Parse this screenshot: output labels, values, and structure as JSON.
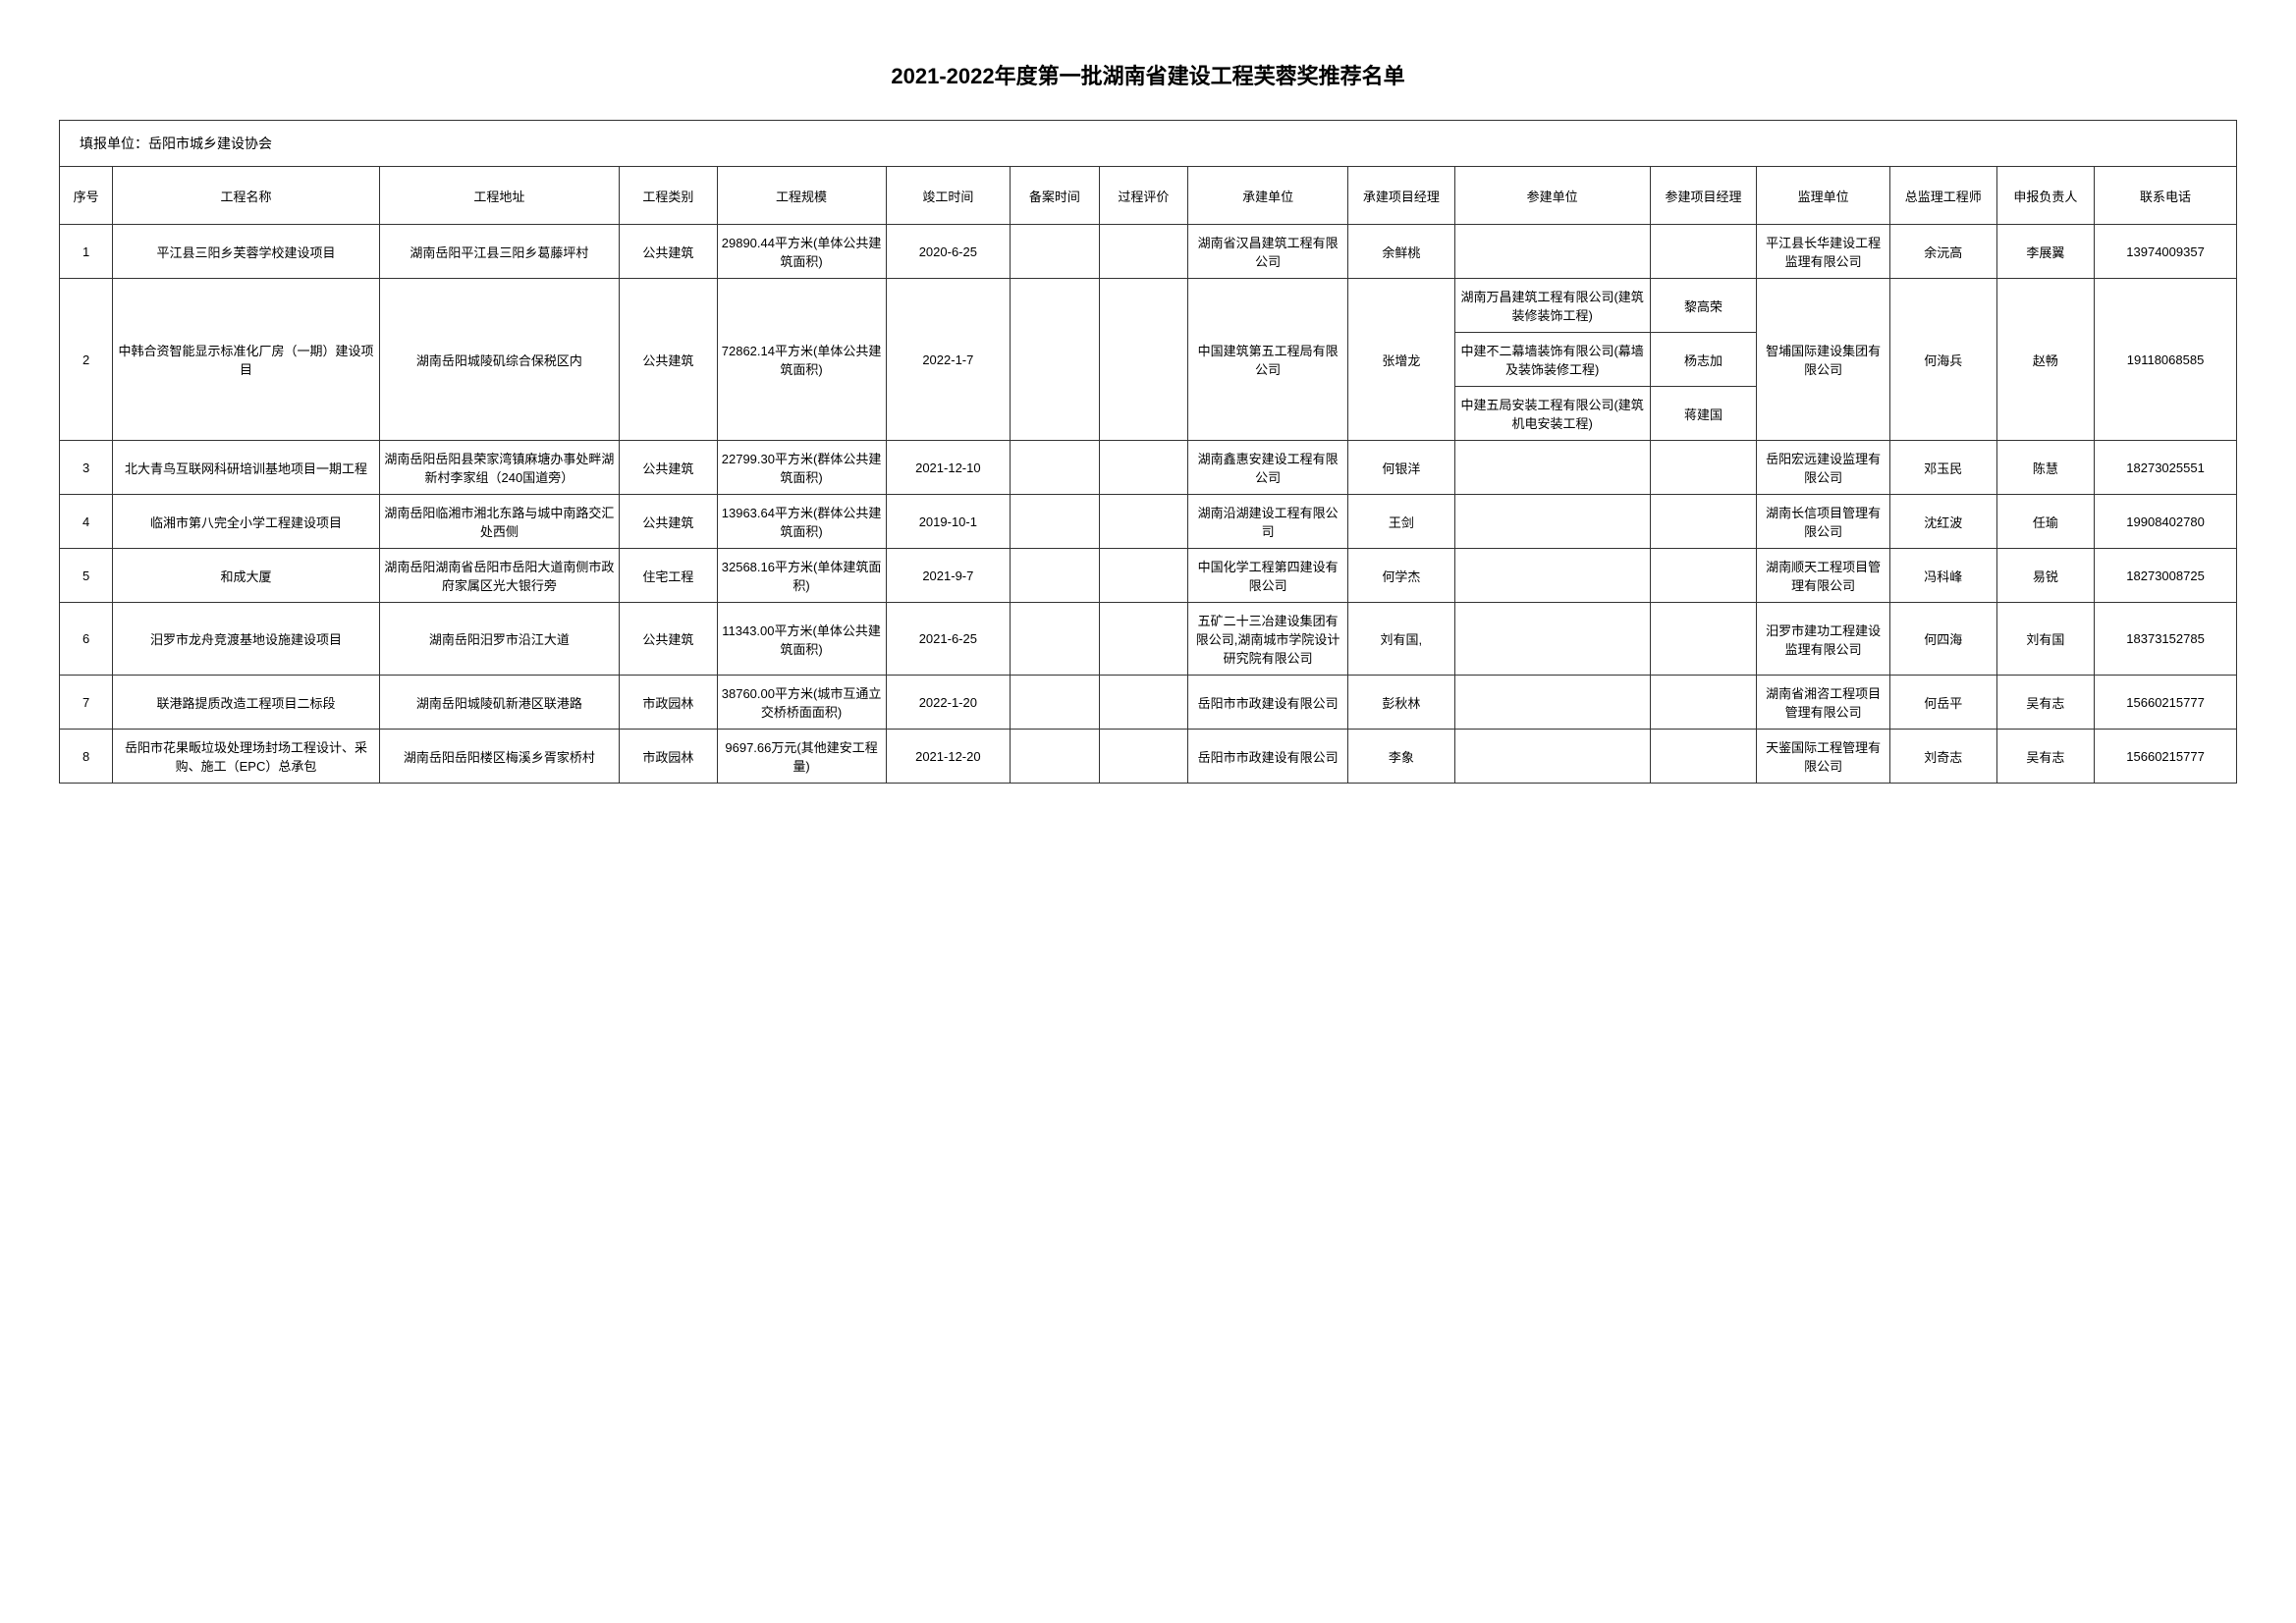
{
  "title": "2021-2022年度第一批湖南省建设工程芙蓉奖推荐名单",
  "reporter_label": "填报单位：岳阳市城乡建设协会",
  "headers": {
    "seq": "序号",
    "name": "工程名称",
    "addr": "工程地址",
    "cat": "工程类别",
    "scale": "工程规模",
    "done": "竣工时间",
    "rec": "备案时间",
    "eval": "过程评价",
    "cu": "承建单位",
    "cm": "承建项目经理",
    "pu": "参建单位",
    "pm": "参建项目经理",
    "su": "监理单位",
    "se": "总监理工程师",
    "ap": "申报负责人",
    "tel": "联系电话"
  },
  "rows": [
    {
      "seq": "1",
      "name": "平江县三阳乡芙蓉学校建设项目",
      "addr": "湖南岳阳平江县三阳乡葛藤坪村",
      "cat": "公共建筑",
      "scale": "29890.44平方米(单体公共建筑面积)",
      "done": "2020-6-25",
      "rec": "",
      "eval": "",
      "cu": "湖南省汉昌建筑工程有限公司",
      "cm": "余鲜桃",
      "pu": "",
      "pm": "",
      "su": "平江县长华建设工程监理有限公司",
      "se": "余沅高",
      "ap": "李展翼",
      "tel": "13974009357"
    },
    {
      "seq": "2",
      "name": "中韩合资智能显示标准化厂房（一期）建设项目",
      "addr": "湖南岳阳城陵矶综合保税区内",
      "cat": "公共建筑",
      "scale": "72862.14平方米(单体公共建筑面积)",
      "done": "2022-1-7",
      "rec": "",
      "eval": "",
      "cu": "中国建筑第五工程局有限公司",
      "cm": "张增龙",
      "participants": [
        {
          "pu": "湖南万昌建筑工程有限公司(建筑装修装饰工程)",
          "pm": "黎高荣"
        },
        {
          "pu": "中建不二幕墙装饰有限公司(幕墙及装饰装修工程)",
          "pm": "杨志加"
        },
        {
          "pu": "中建五局安装工程有限公司(建筑机电安装工程)",
          "pm": "蒋建国"
        }
      ],
      "su": "智埔国际建设集团有限公司",
      "se": "何海兵",
      "ap": "赵畅",
      "tel": "19118068585"
    },
    {
      "seq": "3",
      "name": "北大青鸟互联网科研培训基地项目一期工程",
      "addr": "湖南岳阳岳阳县荣家湾镇麻塘办事处畔湖新村李家组（240国道旁）",
      "cat": "公共建筑",
      "scale": "22799.30平方米(群体公共建筑面积)",
      "done": "2021-12-10",
      "rec": "",
      "eval": "",
      "cu": "湖南鑫惠安建设工程有限公司",
      "cm": "何银洋",
      "pu": "",
      "pm": "",
      "su": "岳阳宏远建设监理有限公司",
      "se": "邓玉民",
      "ap": "陈慧",
      "tel": "18273025551"
    },
    {
      "seq": "4",
      "name": "临湘市第八完全小学工程建设项目",
      "addr": "湖南岳阳临湘市湘北东路与城中南路交汇处西侧",
      "cat": "公共建筑",
      "scale": "13963.64平方米(群体公共建筑面积)",
      "done": "2019-10-1",
      "rec": "",
      "eval": "",
      "cu": "湖南沿湖建设工程有限公司",
      "cm": "王剑",
      "pu": "",
      "pm": "",
      "su": "湖南长信项目管理有限公司",
      "se": "沈红波",
      "ap": "任瑜",
      "tel": "19908402780"
    },
    {
      "seq": "5",
      "name": "和成大厦",
      "addr": "湖南岳阳湖南省岳阳市岳阳大道南侧市政府家属区光大银行旁",
      "cat": "住宅工程",
      "scale": "32568.16平方米(单体建筑面积)",
      "done": "2021-9-7",
      "rec": "",
      "eval": "",
      "cu": "中国化学工程第四建设有限公司",
      "cm": "何学杰",
      "pu": "",
      "pm": "",
      "su": "湖南顺天工程项目管理有限公司",
      "se": "冯科峰",
      "ap": "易锐",
      "tel": "18273008725"
    },
    {
      "seq": "6",
      "name": "汨罗市龙舟竞渡基地设施建设项目",
      "addr": "湖南岳阳汨罗市沿江大道",
      "cat": "公共建筑",
      "scale": "11343.00平方米(单体公共建筑面积)",
      "done": "2021-6-25",
      "rec": "",
      "eval": "",
      "cu": "五矿二十三冶建设集团有限公司,湖南城市学院设计研究院有限公司",
      "cm": "刘有国,",
      "pu": "",
      "pm": "",
      "su": "汨罗市建功工程建设监理有限公司",
      "se": "何四海",
      "ap": "刘有国",
      "tel": "18373152785"
    },
    {
      "seq": "7",
      "name": "联港路提质改造工程项目二标段",
      "addr": "湖南岳阳城陵矶新港区联港路",
      "cat": "市政园林",
      "scale": "38760.00平方米(城市互通立交桥桥面面积)",
      "done": "2022-1-20",
      "rec": "",
      "eval": "",
      "cu": "岳阳市市政建设有限公司",
      "cm": "彭秋林",
      "pu": "",
      "pm": "",
      "su": "湖南省湘咨工程项目管理有限公司",
      "se": "何岳平",
      "ap": "吴有志",
      "tel": "15660215777"
    },
    {
      "seq": "8",
      "name": "岳阳市花果畈垃圾处理场封场工程设计、采购、施工（EPC）总承包",
      "addr": "湖南岳阳岳阳楼区梅溪乡胥家桥村",
      "cat": "市政园林",
      "scale": "9697.66万元(其他建安工程量)",
      "done": "2021-12-20",
      "rec": "",
      "eval": "",
      "cu": "岳阳市市政建设有限公司",
      "cm": "李象",
      "pu": "",
      "pm": "",
      "su": "天鉴国际工程管理有限公司",
      "se": "刘奇志",
      "ap": "吴有志",
      "tel": "15660215777"
    }
  ]
}
